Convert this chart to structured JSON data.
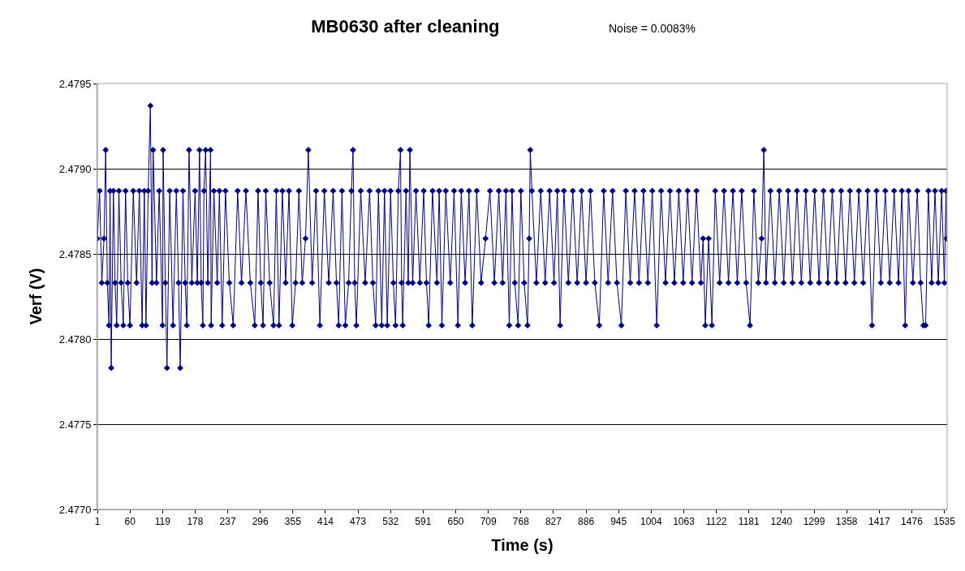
{
  "chart_data": {
    "type": "line",
    "title": "MB0630 after cleaning",
    "xlabel": "Time (s)",
    "ylabel": "Verf (V)",
    "annotations": [
      "Noise = 0.0083%"
    ],
    "xlim": [
      1,
      1540
    ],
    "xticks": [
      1,
      60,
      119,
      178,
      237,
      296,
      355,
      414,
      473,
      532,
      591,
      650,
      709,
      768,
      827,
      886,
      945,
      1004,
      1063,
      1122,
      1181,
      1240,
      1299,
      1358,
      1417,
      1476,
      1535
    ],
    "ylim": [
      2.477,
      2.4795
    ],
    "yticks": [
      {
        "value": 2.477,
        "label": "2.4770"
      },
      2.4775,
      {
        "value": 2.478,
        "label": "2.4780"
      },
      2.4785,
      {
        "value": 2.479,
        "label": "2.4790"
      },
      2.4795
    ],
    "grid": "y",
    "marker": "diamond",
    "line_style": "solid",
    "series": [
      {
        "color": "#000080",
        "x": [
          1,
          5,
          9,
          13,
          16,
          19,
          22,
          24,
          26,
          30,
          33,
          36,
          40,
          44,
          48,
          52,
          56,
          60,
          66,
          72,
          77,
          82,
          86,
          89,
          93,
          97,
          100,
          102,
          108,
          113,
          119,
          120,
          124,
          127,
          132,
          138,
          144,
          148,
          151,
          156,
          160,
          163,
          167,
          172,
          178,
          182,
          186,
          189,
          192,
          194,
          197,
          201,
          206,
          207,
          212,
          218,
          222,
          227,
          233,
          240,
          247,
          255,
          262,
          270,
          278,
          286,
          292,
          297,
          301,
          306,
          313,
          320,
          325,
          330,
          336,
          342,
          348,
          354,
          360,
          366,
          372,
          378,
          383,
          390,
          397,
          404,
          412,
          420,
          428,
          434,
          438,
          444,
          450,
          456,
          461,
          464,
          467,
          470,
          478,
          486,
          494,
          500,
          505,
          510,
          516,
          521,
          526,
          532,
          537,
          541,
          546,
          550,
          552,
          554,
          560,
          564,
          567,
          572,
          578,
          585,
          592,
          597,
          601,
          608,
          616,
          620,
          625,
          632,
          640,
          647,
          654,
          660,
          667,
          674,
          680,
          688,
          696,
          704,
          712,
          720,
          728,
          735,
          741,
          747,
          752,
          757,
          763,
          768,
          774,
          780,
          783,
          785,
          788,
          796,
          804,
          812,
          820,
          828,
          834,
          839,
          846,
          854,
          862,
          870,
          878,
          886,
          894,
          902,
          910,
          918,
          926,
          934,
          942,
          950,
          958,
          966,
          974,
          982,
          990,
          998,
          1006,
          1014,
          1022,
          1030,
          1038,
          1046,
          1054,
          1062,
          1070,
          1078,
          1086,
          1094,
          1098,
          1102,
          1108,
          1114,
          1120,
          1128,
          1136,
          1144,
          1152,
          1160,
          1168,
          1176,
          1183,
          1190,
          1198,
          1204,
          1208,
          1212,
          1220,
          1228,
          1236,
          1244,
          1252,
          1260,
          1268,
          1276,
          1284,
          1292,
          1300,
          1308,
          1316,
          1324,
          1332,
          1340,
          1348,
          1356,
          1364,
          1372,
          1380,
          1388,
          1396,
          1404,
          1412,
          1420,
          1428,
          1436,
          1444,
          1452,
          1458,
          1464,
          1470,
          1478,
          1486,
          1492,
          1497,
          1501,
          1506,
          1512,
          1518,
          1524,
          1530,
          1535,
          1538,
          1539
        ],
        "values": [
          2.47859,
          2.47887,
          2.47833,
          2.47859,
          2.47911,
          2.47833,
          2.47808,
          2.47887,
          2.47783,
          2.47887,
          2.47833,
          2.47808,
          2.47887,
          2.47833,
          2.47808,
          2.47887,
          2.47833,
          2.47808,
          2.47887,
          2.47833,
          2.47887,
          2.47808,
          2.47887,
          2.47808,
          2.47887,
          2.47937,
          2.47833,
          2.47911,
          2.47833,
          2.47887,
          2.47808,
          2.47911,
          2.47833,
          2.47783,
          2.47887,
          2.47808,
          2.47887,
          2.47833,
          2.47783,
          2.47887,
          2.47833,
          2.47808,
          2.47911,
          2.47833,
          2.47887,
          2.47833,
          2.47911,
          2.47833,
          2.47808,
          2.47887,
          2.47911,
          2.47833,
          2.47911,
          2.47808,
          2.47887,
          2.47833,
          2.47887,
          2.47808,
          2.47887,
          2.47833,
          2.47808,
          2.47887,
          2.47833,
          2.47887,
          2.47833,
          2.47808,
          2.47887,
          2.47833,
          2.47808,
          2.47887,
          2.47833,
          2.47808,
          2.47887,
          2.47808,
          2.47887,
          2.47833,
          2.47887,
          2.47808,
          2.47833,
          2.47887,
          2.47833,
          2.47859,
          2.47911,
          2.47833,
          2.47887,
          2.47808,
          2.47887,
          2.47833,
          2.47887,
          2.47833,
          2.47808,
          2.47887,
          2.47808,
          2.47833,
          2.47887,
          2.47911,
          2.47833,
          2.47808,
          2.47887,
          2.47833,
          2.47887,
          2.47833,
          2.47808,
          2.47887,
          2.47808,
          2.47887,
          2.47808,
          2.47887,
          2.47833,
          2.47808,
          2.47887,
          2.47911,
          2.47833,
          2.47808,
          2.47887,
          2.47833,
          2.47911,
          2.47833,
          2.47887,
          2.47833,
          2.47887,
          2.47833,
          2.47808,
          2.47887,
          2.47833,
          2.47887,
          2.47808,
          2.47887,
          2.47833,
          2.47887,
          2.47808,
          2.47887,
          2.47833,
          2.47887,
          2.47808,
          2.47887,
          2.47833,
          2.47859,
          2.47887,
          2.47833,
          2.47887,
          2.47833,
          2.47887,
          2.47808,
          2.47887,
          2.47833,
          2.47808,
          2.47887,
          2.47833,
          2.47808,
          2.47859,
          2.47911,
          2.47887,
          2.47833,
          2.47887,
          2.47833,
          2.47887,
          2.47833,
          2.47887,
          2.47808,
          2.47887,
          2.47833,
          2.47887,
          2.47833,
          2.47887,
          2.47833,
          2.47887,
          2.47833,
          2.47808,
          2.47887,
          2.47833,
          2.47887,
          2.47833,
          2.47808,
          2.47887,
          2.47833,
          2.47887,
          2.47833,
          2.47887,
          2.47833,
          2.47887,
          2.47808,
          2.47887,
          2.47833,
          2.47887,
          2.47833,
          2.47887,
          2.47833,
          2.47887,
          2.47833,
          2.47887,
          2.47833,
          2.47859,
          2.47808,
          2.47859,
          2.47808,
          2.47887,
          2.47833,
          2.47887,
          2.47833,
          2.47887,
          2.47833,
          2.47887,
          2.47833,
          2.47808,
          2.47887,
          2.47833,
          2.47859,
          2.47911,
          2.47833,
          2.47887,
          2.47833,
          2.47887,
          2.47833,
          2.47887,
          2.47833,
          2.47887,
          2.47833,
          2.47887,
          2.47833,
          2.47887,
          2.47833,
          2.47887,
          2.47833,
          2.47887,
          2.47833,
          2.47887,
          2.47833,
          2.47887,
          2.47833,
          2.47887,
          2.47833,
          2.47887,
          2.47808,
          2.47887,
          2.47833,
          2.47887,
          2.47833,
          2.47887,
          2.47833,
          2.47887,
          2.47808,
          2.47887,
          2.47833,
          2.47887,
          2.47833,
          2.47808,
          2.47808,
          2.47887,
          2.47833,
          2.47887,
          2.47833,
          2.47887,
          2.47833,
          2.47887,
          2.47859
        ]
      }
    ]
  }
}
